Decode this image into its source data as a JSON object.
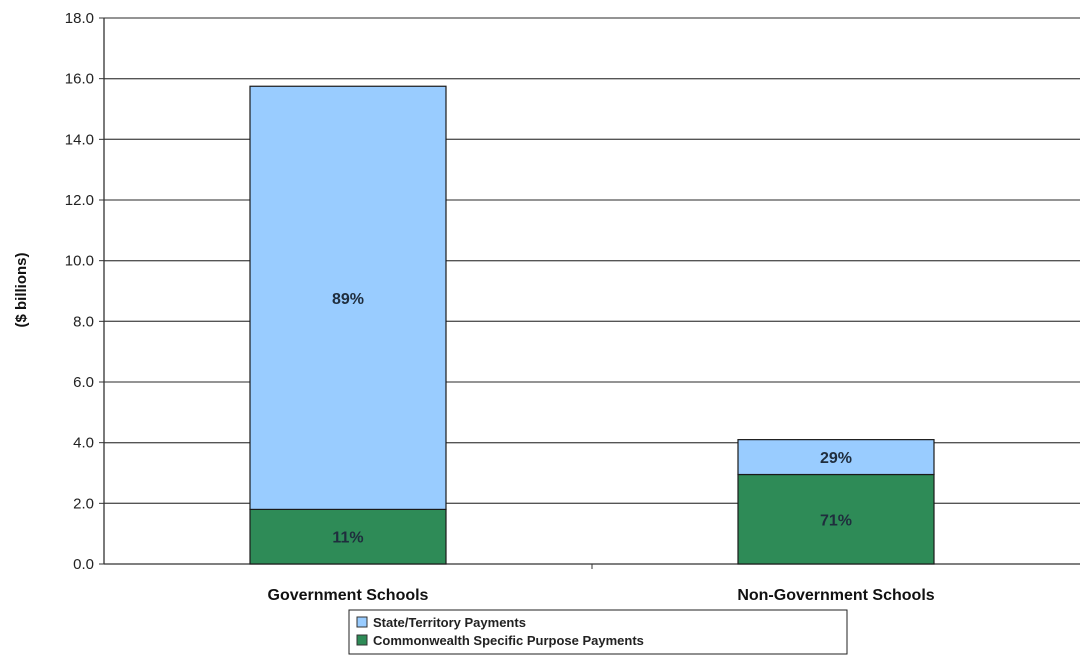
{
  "chart_data": {
    "type": "bar",
    "stacked": true,
    "categories": [
      "Government Schools",
      "Non-Government Schools"
    ],
    "series": [
      {
        "name": "Commonwealth Specific Purpose Payments",
        "values": [
          1.8,
          2.95
        ],
        "labels": [
          "11%",
          "71%"
        ],
        "color": "#2e8b57"
      },
      {
        "name": "State/Territory Payments",
        "values": [
          13.95,
          1.15
        ],
        "labels": [
          "89%",
          "29%"
        ],
        "color": "#99ccff"
      }
    ],
    "ylabel": "($ billions)",
    "ylim": [
      0,
      18
    ],
    "yticks": [
      "0.0",
      "2.0",
      "4.0",
      "6.0",
      "8.0",
      "10.0",
      "12.0",
      "14.0",
      "16.0",
      "18.0"
    ],
    "grid": true,
    "legend_position": "bottom"
  }
}
